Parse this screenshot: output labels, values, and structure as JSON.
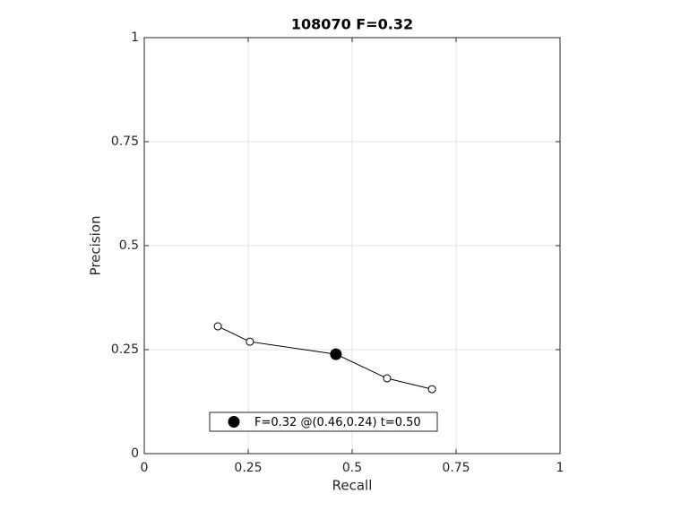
{
  "chart_data": {
    "type": "line",
    "title": "108070 F=0.32",
    "x_label": "Recall",
    "y_label": "Precision",
    "series": [
      {
        "x": [
          0.177,
          0.254,
          0.461,
          0.584,
          0.692
        ],
        "values": [
          0.306,
          0.269,
          0.239,
          0.181,
          0.155
        ],
        "color": "#000000"
      }
    ],
    "highlight": {
      "name": "F=0.32 @(0.46,0.24) t=0.50",
      "x": 0.461,
      "value": 0.239,
      "color": "#000000"
    },
    "xlim": [
      0,
      1
    ],
    "ylim": [
      0,
      1
    ],
    "xticks": [
      0,
      0.25,
      0.5,
      0.75,
      1
    ],
    "yticks": [
      0,
      0.25,
      0.5,
      0.75,
      1
    ],
    "grid": true,
    "legend": "south"
  }
}
